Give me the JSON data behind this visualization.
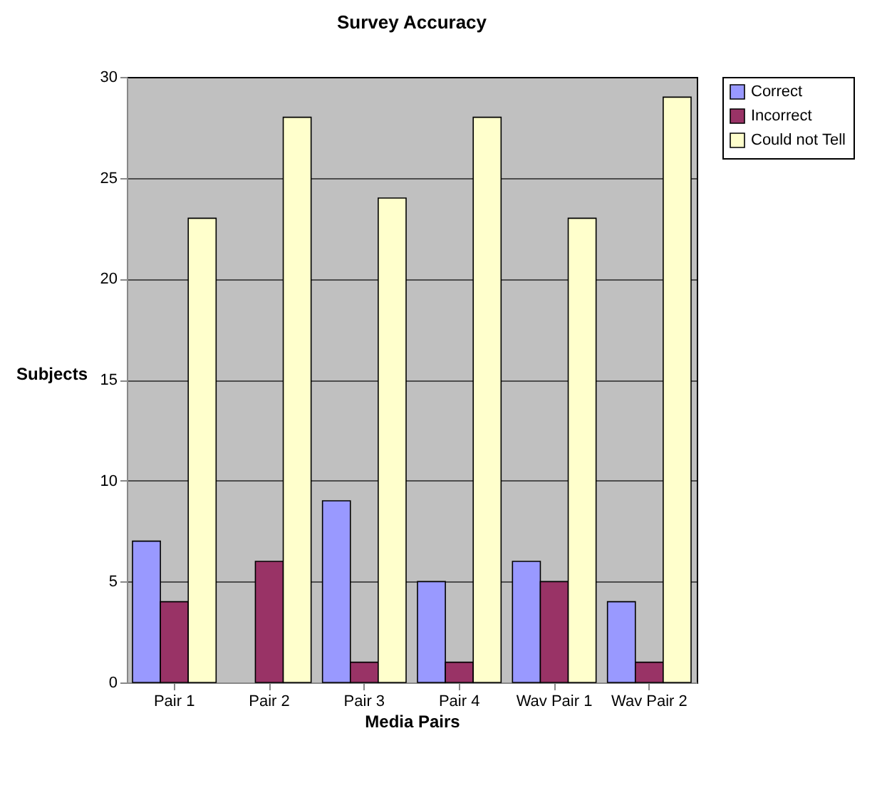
{
  "chart_data": {
    "type": "bar",
    "title": "Survey Accuracy",
    "xlabel": "Media Pairs",
    "ylabel": "Subjects",
    "categories": [
      "Pair 1",
      "Pair 2",
      "Pair 3",
      "Pair 4",
      "Wav Pair 1",
      "Wav Pair 2"
    ],
    "series": [
      {
        "name": "Correct",
        "color": "#9999ff",
        "values": [
          7,
          0,
          9,
          5,
          6,
          4
        ]
      },
      {
        "name": "Incorrect",
        "color": "#993366",
        "values": [
          4,
          6,
          1,
          1,
          5,
          1
        ]
      },
      {
        "name": "Could not Tell",
        "color": "#ffffcc",
        "values": [
          23,
          28,
          24,
          28,
          23,
          29
        ]
      }
    ],
    "ylim": [
      0,
      30
    ],
    "yticks": [
      0,
      5,
      10,
      15,
      20,
      25,
      30
    ],
    "grid": "y",
    "legend": "right"
  }
}
